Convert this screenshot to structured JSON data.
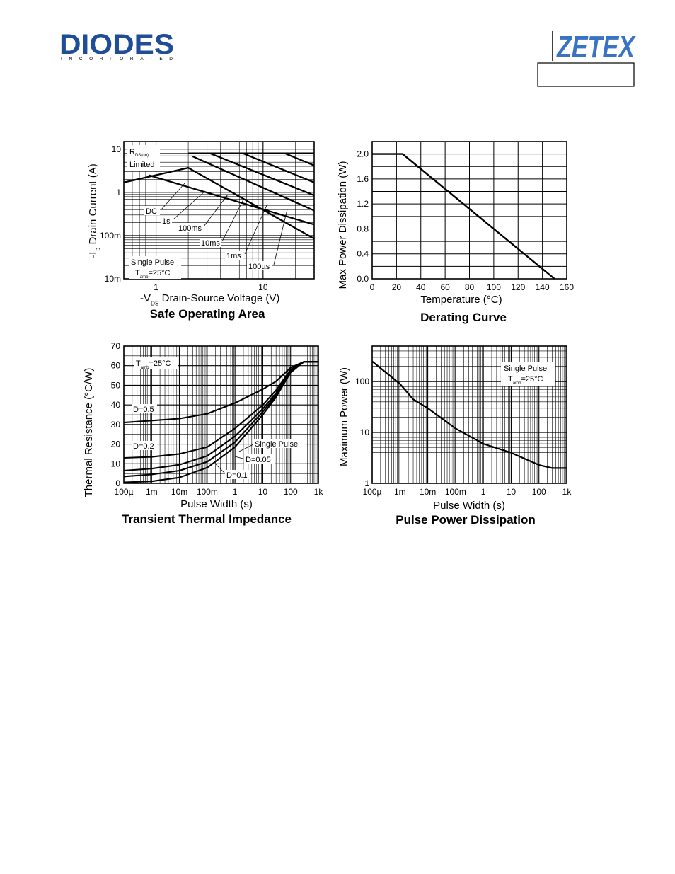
{
  "header": {
    "left_logo_text": "DIODES",
    "left_logo_subtext": "INCORPORATED",
    "right_logo_text": "ZETEX",
    "doc_box_text": ""
  },
  "colors": {
    "diodes_blue": "#1f4e96",
    "zetex_blue": "#3a72c4",
    "grid_heavy": "#000000",
    "grid_light": "#000000"
  },
  "chart_data": [
    {
      "type": "line",
      "title": "Safe Operating Area",
      "ylabel_prefix": "-I",
      "ylabel_sub": "D",
      "ylabel_rest": "Drain Current (A)",
      "xlabel_prefix": "-V",
      "xlabel_sub": "DS",
      "xlabel_rest": "Drain-Source Voltage (V)",
      "x_scale": "log",
      "y_scale": "log",
      "xlim": [
        0.5,
        30
      ],
      "ylim": [
        0.01,
        15
      ],
      "x_ticks": [
        {
          "v": 1,
          "label": "1"
        },
        {
          "v": 10,
          "label": "10"
        }
      ],
      "y_ticks": [
        {
          "v": 0.01,
          "label": "10m"
        },
        {
          "v": 0.1,
          "label": "100m"
        },
        {
          "v": 1,
          "label": "1"
        },
        {
          "v": 10,
          "label": "10"
        }
      ],
      "annotations": {
        "rds_label": "R",
        "rds_sub": "DS(on)",
        "limited": "Limited",
        "single_pulse": "Single Pulse",
        "tamb_label": "T",
        "tamb_sub": "amb",
        "tamb_value": "=25°C"
      },
      "series": [
        {
          "name": "DC",
          "x": [
            0.5,
            2.0,
            30
          ],
          "y": [
            1.7,
            3.7,
            0.085
          ]
        },
        {
          "name": "1s",
          "x": [
            0.85,
            30
          ],
          "y": [
            2.5,
            0.18
          ]
        },
        {
          "name": "100ms",
          "x": [
            2.2,
            30
          ],
          "y": [
            6.8,
            0.38
          ]
        },
        {
          "name": "10ms",
          "x": [
            3.2,
            30
          ],
          "y": [
            8,
            0.85
          ]
        },
        {
          "name": "1ms",
          "x": [
            6.5,
            30
          ],
          "y": [
            8,
            1.7
          ]
        },
        {
          "name": "100µs",
          "x": [
            16,
            30
          ],
          "y": [
            8,
            4.2
          ]
        },
        {
          "name": "",
          "x": [
            2.0,
            30
          ],
          "y": [
            8,
            8
          ]
        }
      ]
    },
    {
      "type": "line",
      "title": "Derating Curve",
      "xlabel": "Temperature (°C)",
      "ylabel": "Max Power Dissipation (W)",
      "xlim": [
        0,
        160
      ],
      "ylim": [
        0,
        2.2
      ],
      "x_ticks": [
        0,
        20,
        40,
        60,
        80,
        100,
        120,
        140,
        160
      ],
      "y_ticks": [
        "0.0",
        "0.4",
        "0.8",
        "1.2",
        "1.6",
        "2.0"
      ],
      "series": [
        {
          "x": [
            0,
            25,
            150
          ],
          "y": [
            2.0,
            2.0,
            0.0
          ]
        }
      ]
    },
    {
      "type": "line",
      "title": "Transient Thermal Impedance",
      "xlabel": "Pulse Width (s)",
      "ylabel": "Thermal Resistance (°C/W)",
      "x_scale": "log",
      "xlim": [
        0.0001,
        1000
      ],
      "ylim": [
        0,
        70
      ],
      "x_ticks": [
        {
          "v": 0.0001,
          "label": "100µ"
        },
        {
          "v": 0.001,
          "label": "1m"
        },
        {
          "v": 0.01,
          "label": "10m"
        },
        {
          "v": 0.1,
          "label": "100m"
        },
        {
          "v": 1,
          "label": "1"
        },
        {
          "v": 10,
          "label": "10"
        },
        {
          "v": 100,
          "label": "100"
        },
        {
          "v": 1000,
          "label": "1k"
        }
      ],
      "y_ticks": [
        0,
        10,
        20,
        30,
        40,
        50,
        60,
        70
      ],
      "annotations": {
        "tamb_label": "T",
        "tamb_sub": "amb",
        "tamb_value": "=25°C"
      },
      "series": [
        {
          "name": "D=0.5",
          "x": [
            0.0001,
            0.001,
            0.01,
            0.1,
            1,
            10,
            30,
            100,
            300,
            1000
          ],
          "y": [
            31,
            32,
            33,
            35.5,
            41,
            48,
            52,
            59,
            62,
            62
          ]
        },
        {
          "name": "D=0.2",
          "x": [
            0.0001,
            0.001,
            0.01,
            0.1,
            1,
            10,
            30,
            100,
            300,
            1000
          ],
          "y": [
            13,
            13.5,
            15,
            18.5,
            28,
            40,
            47.5,
            58,
            62,
            62
          ]
        },
        {
          "name": "D=0.1",
          "x": [
            0.0001,
            0.001,
            0.01,
            0.1,
            1,
            10,
            30,
            100,
            300,
            1000
          ],
          "y": [
            6.5,
            7.5,
            9.5,
            14,
            24,
            38,
            46,
            57.5,
            62,
            62
          ]
        },
        {
          "name": "D=0.05",
          "x": [
            0.0001,
            0.001,
            0.01,
            0.1,
            1,
            10,
            30,
            100,
            300,
            1000
          ],
          "y": [
            3.5,
            4.5,
            6.5,
            11,
            21,
            36.5,
            45,
            57,
            62,
            62
          ]
        },
        {
          "name": "Single Pulse",
          "x": [
            0.0001,
            0.001,
            0.01,
            0.1,
            1,
            10,
            30,
            100,
            300,
            1000
          ],
          "y": [
            0.5,
            1,
            3,
            8,
            18.5,
            35,
            44,
            56.5,
            62,
            62
          ]
        }
      ]
    },
    {
      "type": "line",
      "title": "Pulse Power Dissipation",
      "xlabel": "Pulse Width (s)",
      "ylabel": "Maximum Power (W)",
      "x_scale": "log",
      "y_scale": "log",
      "xlim": [
        0.0001,
        1000
      ],
      "ylim": [
        1,
        500
      ],
      "x_ticks": [
        {
          "v": 0.0001,
          "label": "100µ"
        },
        {
          "v": 0.001,
          "label": "1m"
        },
        {
          "v": 0.01,
          "label": "10m"
        },
        {
          "v": 0.1,
          "label": "100m"
        },
        {
          "v": 1,
          "label": "1"
        },
        {
          "v": 10,
          "label": "10"
        },
        {
          "v": 100,
          "label": "100"
        },
        {
          "v": 1000,
          "label": "1k"
        }
      ],
      "y_ticks": [
        {
          "v": 1,
          "label": "1"
        },
        {
          "v": 10,
          "label": "10"
        },
        {
          "v": 100,
          "label": "100"
        }
      ],
      "annotations": {
        "single_pulse": "Single Pulse",
        "tamb_label": "T",
        "tamb_sub": "amb",
        "tamb_value": "=25°C"
      },
      "series": [
        {
          "x": [
            0.0001,
            0.001,
            0.003,
            0.01,
            0.1,
            1,
            10,
            100,
            300,
            1000
          ],
          "y": [
            250,
            90,
            45,
            30,
            12,
            6,
            4,
            2.3,
            2.0,
            2.0
          ]
        }
      ]
    }
  ]
}
